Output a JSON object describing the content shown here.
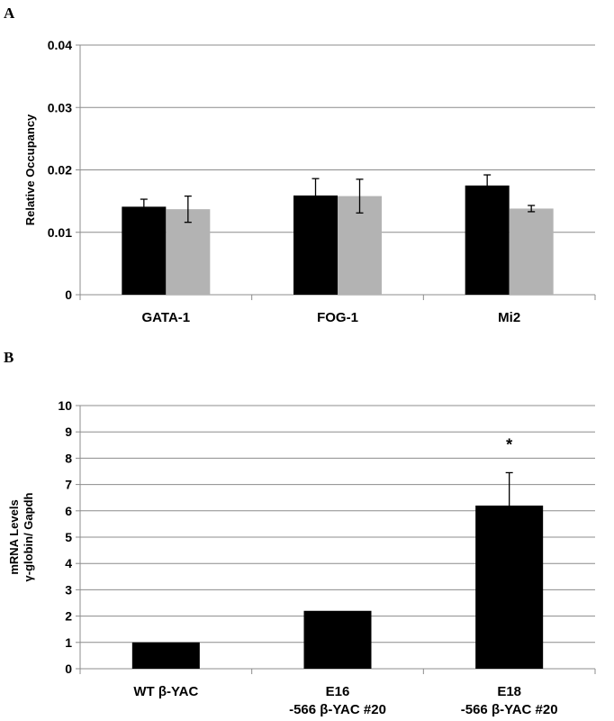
{
  "panels": {
    "a": "A",
    "b": "B"
  },
  "chart_data": [
    {
      "type": "bar",
      "categories": [
        "GATA-1",
        "FOG-1",
        "Mi2"
      ],
      "series": [
        {
          "values": [
            0.0141,
            0.0159,
            0.0175
          ],
          "errors": [
            0.0012,
            0.0027,
            0.0017
          ],
          "color": "#000000"
        },
        {
          "values": [
            0.0137,
            0.0158,
            0.0138
          ],
          "errors": [
            0.0021,
            0.0027,
            0.0005
          ],
          "color": "#b3b3b3"
        }
      ],
      "ylabel": "Relative Occupancy",
      "ylim": [
        0,
        0.04
      ],
      "yticks": [
        "0",
        "0.01",
        "0.02",
        "0.03",
        "0.04"
      ],
      "ytick_values": [
        0,
        0.01,
        0.02,
        0.03,
        0.04
      ],
      "grid": true
    },
    {
      "type": "bar",
      "categories": [
        [
          "WT β-YAC"
        ],
        [
          "E16",
          "-566 β-YAC #20"
        ],
        [
          "E18",
          "-566 β-YAC #20"
        ]
      ],
      "series": [
        {
          "values": [
            1.0,
            2.2,
            6.2
          ],
          "errors": [
            null,
            null,
            1.25
          ],
          "color": "#000000"
        }
      ],
      "ylabel": [
        "mRNA Levels",
        "γ-globin/ Gapdh"
      ],
      "ylim": [
        0,
        10
      ],
      "yticks": [
        "0",
        "1",
        "2",
        "3",
        "4",
        "5",
        "6",
        "7",
        "8",
        "9",
        "10"
      ],
      "ytick_values": [
        0,
        1,
        2,
        3,
        4,
        5,
        6,
        7,
        8,
        9,
        10
      ],
      "annotations": [
        "*"
      ],
      "grid": true
    }
  ]
}
